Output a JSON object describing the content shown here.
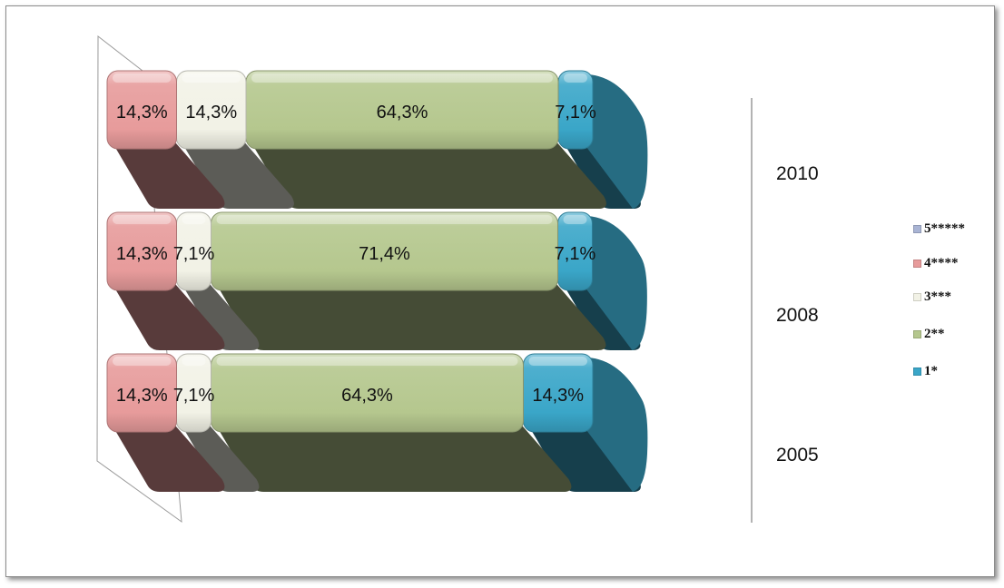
{
  "chart_data": {
    "type": "bar",
    "orientation": "horizontal",
    "stacked": true,
    "percent_stacked": true,
    "style": "3d-rounded",
    "title": "",
    "xlabel": "",
    "ylabel": "",
    "categories": [
      "2010",
      "2008",
      "2005"
    ],
    "series": [
      {
        "name": "5*****",
        "color": "#a9b4d4",
        "values": [
          0,
          0,
          0
        ],
        "labels": [
          "",
          "",
          ""
        ]
      },
      {
        "name": "4****",
        "color": "#e79b9b",
        "values": [
          14.3,
          14.3,
          14.3
        ],
        "labels": [
          "14,3%",
          "14,3%",
          "14,3%"
        ]
      },
      {
        "name": "3***",
        "color": "#f2f2e6",
        "values": [
          14.3,
          7.1,
          7.1
        ],
        "labels": [
          "14,3%",
          "7,1%",
          "7,1%"
        ]
      },
      {
        "name": "2**",
        "color": "#b5c78e",
        "values": [
          64.3,
          71.4,
          64.3
        ],
        "labels": [
          "64,3%",
          "71,4%",
          "64,3%"
        ]
      },
      {
        "name": "1*",
        "color": "#3aa6c8",
        "values": [
          7.1,
          7.1,
          14.3
        ],
        "labels": [
          "7,1%",
          "7,1%",
          "14,3%"
        ]
      }
    ],
    "legend_position": "right",
    "grid": false
  }
}
